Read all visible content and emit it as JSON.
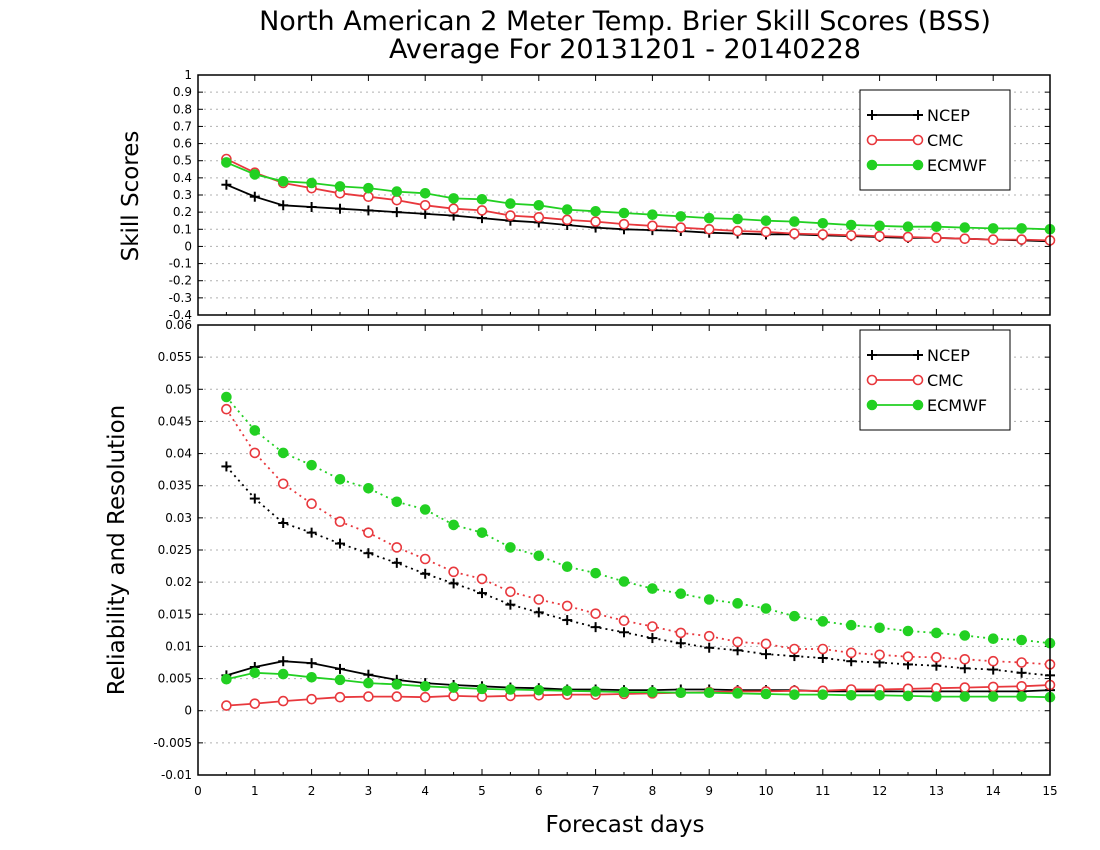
{
  "title_line1": "North American 2 Meter Temp. Brier Skill Scores (BSS)",
  "title_line2": "Average For 20131201 - 20140228",
  "xlabel": "Forecast days",
  "colors": {
    "NCEP": "#000000",
    "CMC": "#e8383d",
    "ECMWF": "#22d022",
    "grid": "#b0b0b0"
  },
  "chart_data": [
    {
      "type": "line",
      "ylabel": "Skill Scores",
      "xlim": [
        0,
        15
      ],
      "ylim": [
        -0.4,
        1
      ],
      "xticks": [
        "0",
        "1",
        "2",
        "3",
        "4",
        "5",
        "6",
        "7",
        "8",
        "9",
        "10",
        "11",
        "12",
        "13",
        "14",
        "15"
      ],
      "yticks": [
        "-0.4",
        "-0.3",
        "-0.2",
        "-0.1",
        "0",
        "0.1",
        "0.2",
        "0.3",
        "0.4",
        "0.5",
        "0.6",
        "0.7",
        "0.8",
        "0.9",
        "1"
      ],
      "grid": true,
      "legend_position": "top-right",
      "x": [
        0.5,
        1,
        1.5,
        2,
        2.5,
        3,
        3.5,
        4,
        4.5,
        5,
        5.5,
        6,
        6.5,
        7,
        7.5,
        8,
        8.5,
        9,
        9.5,
        10,
        10.5,
        11,
        11.5,
        12,
        12.5,
        13,
        13.5,
        14,
        14.5,
        15
      ],
      "series": [
        {
          "name": "NCEP",
          "style": "solid",
          "marker": "plus",
          "values": [
            0.36,
            0.29,
            0.24,
            0.23,
            0.22,
            0.21,
            0.2,
            0.19,
            0.18,
            0.165,
            0.15,
            0.14,
            0.125,
            0.11,
            0.1,
            0.095,
            0.09,
            0.08,
            0.075,
            0.07,
            0.07,
            0.065,
            0.06,
            0.055,
            0.05,
            0.05,
            0.045,
            0.04,
            0.035,
            0.03
          ]
        },
        {
          "name": "CMC",
          "style": "solid",
          "marker": "open-circle",
          "values": [
            0.51,
            0.43,
            0.37,
            0.34,
            0.31,
            0.29,
            0.27,
            0.24,
            0.22,
            0.21,
            0.18,
            0.17,
            0.155,
            0.145,
            0.13,
            0.12,
            0.11,
            0.1,
            0.09,
            0.085,
            0.075,
            0.07,
            0.065,
            0.06,
            0.055,
            0.05,
            0.045,
            0.04,
            0.04,
            0.035
          ]
        },
        {
          "name": "ECMWF",
          "style": "solid",
          "marker": "filled-circle",
          "values": [
            0.49,
            0.42,
            0.38,
            0.37,
            0.35,
            0.34,
            0.32,
            0.31,
            0.28,
            0.275,
            0.25,
            0.24,
            0.215,
            0.205,
            0.195,
            0.185,
            0.175,
            0.165,
            0.16,
            0.15,
            0.145,
            0.135,
            0.125,
            0.12,
            0.115,
            0.115,
            0.11,
            0.105,
            0.105,
            0.1
          ]
        }
      ]
    },
    {
      "type": "line",
      "ylabel": "Reliability and Resolution",
      "xlim": [
        0,
        15
      ],
      "ylim": [
        -0.01,
        0.06
      ],
      "xticks": [
        "0",
        "1",
        "2",
        "3",
        "4",
        "5",
        "6",
        "7",
        "8",
        "9",
        "10",
        "11",
        "12",
        "13",
        "14",
        "15"
      ],
      "yticks": [
        "-0.01",
        "-0.005",
        "0",
        "0.005",
        "0.01",
        "0.015",
        "0.02",
        "0.025",
        "0.03",
        "0.035",
        "0.04",
        "0.045",
        "0.05",
        "0.055",
        "0.06"
      ],
      "grid": true,
      "legend_position": "top-right",
      "x": [
        0.5,
        1,
        1.5,
        2,
        2.5,
        3,
        3.5,
        4,
        4.5,
        5,
        5.5,
        6,
        6.5,
        7,
        7.5,
        8,
        8.5,
        9,
        9.5,
        10,
        10.5,
        11,
        11.5,
        12,
        12.5,
        13,
        13.5,
        14,
        14.5,
        15
      ],
      "series": [
        {
          "name": "NCEP",
          "style": "dotted",
          "marker": "plus",
          "values": [
            0.038,
            0.033,
            0.0292,
            0.0277,
            0.026,
            0.0245,
            0.023,
            0.0213,
            0.0198,
            0.0183,
            0.0165,
            0.0153,
            0.0141,
            0.013,
            0.0122,
            0.0113,
            0.0105,
            0.0098,
            0.0094,
            0.0088,
            0.0085,
            0.0082,
            0.0077,
            0.0075,
            0.0072,
            0.007,
            0.0066,
            0.0064,
            0.0059,
            0.0055
          ]
        },
        {
          "name": "CMC",
          "style": "dotted",
          "marker": "open-circle",
          "values": [
            0.0469,
            0.0401,
            0.0353,
            0.0322,
            0.0294,
            0.0277,
            0.0254,
            0.0236,
            0.0216,
            0.0205,
            0.0185,
            0.0173,
            0.0163,
            0.0151,
            0.014,
            0.0131,
            0.0121,
            0.0116,
            0.0107,
            0.0104,
            0.0096,
            0.0096,
            0.009,
            0.0087,
            0.0084,
            0.0083,
            0.008,
            0.0077,
            0.0075,
            0.0072
          ]
        },
        {
          "name": "ECMWF",
          "style": "dotted",
          "marker": "filled-circle",
          "values": [
            0.0488,
            0.0436,
            0.0401,
            0.0382,
            0.036,
            0.0346,
            0.0325,
            0.0313,
            0.0289,
            0.0277,
            0.0254,
            0.0241,
            0.0224,
            0.0214,
            0.0201,
            0.019,
            0.0182,
            0.0173,
            0.0167,
            0.0159,
            0.0147,
            0.0139,
            0.0133,
            0.0129,
            0.0124,
            0.0121,
            0.0117,
            0.0112,
            0.011,
            0.0105
          ]
        },
        {
          "name": "NCEP",
          "style": "solid",
          "marker": "plus",
          "values": [
            0.0055,
            0.0068,
            0.0077,
            0.0074,
            0.0065,
            0.0056,
            0.0048,
            0.0043,
            0.004,
            0.0038,
            0.0036,
            0.0035,
            0.0033,
            0.0033,
            0.0032,
            0.0032,
            0.0033,
            0.0033,
            0.0032,
            0.0032,
            0.0032,
            0.003,
            0.003,
            0.003,
            0.003,
            0.003,
            0.003,
            0.003,
            0.003,
            0.0032
          ]
        },
        {
          "name": "CMC",
          "style": "solid",
          "marker": "open-circle",
          "values": [
            0.0008,
            0.0011,
            0.0015,
            0.0018,
            0.0021,
            0.0022,
            0.0022,
            0.0021,
            0.0023,
            0.0022,
            0.0023,
            0.0024,
            0.0025,
            0.0025,
            0.0026,
            0.0027,
            0.0028,
            0.0029,
            0.003,
            0.003,
            0.0031,
            0.0031,
            0.0033,
            0.0033,
            0.0034,
            0.0035,
            0.0036,
            0.0037,
            0.0038,
            0.004
          ]
        },
        {
          "name": "ECMWF",
          "style": "solid",
          "marker": "filled-circle",
          "values": [
            0.0049,
            0.0059,
            0.0057,
            0.0052,
            0.0048,
            0.0043,
            0.0041,
            0.0038,
            0.0036,
            0.0034,
            0.0033,
            0.0032,
            0.0031,
            0.003,
            0.0029,
            0.0029,
            0.0028,
            0.0028,
            0.0027,
            0.0026,
            0.0025,
            0.0025,
            0.0024,
            0.0024,
            0.0023,
            0.0022,
            0.0022,
            0.0022,
            0.0022,
            0.0021
          ]
        }
      ],
      "legend_entries": [
        "NCEP",
        "CMC",
        "ECMWF"
      ]
    }
  ],
  "legend_labels": [
    "NCEP",
    "CMC",
    "ECMWF"
  ]
}
